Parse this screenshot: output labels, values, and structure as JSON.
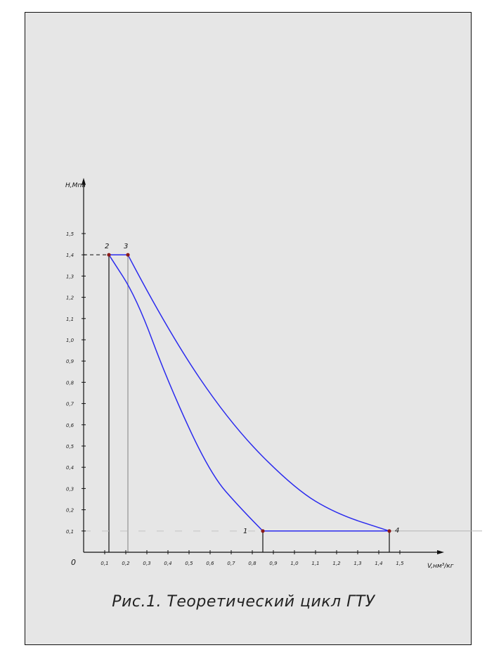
{
  "caption": "Рис.1. Теоретический цикл ГТУ",
  "chart_data": {
    "type": "line",
    "xlabel": "V,нм³/кг",
    "ylabel": "Н,Мпа",
    "origin_label": "0",
    "xlim": [
      0,
      1.6
    ],
    "ylim": [
      0,
      1.6
    ],
    "xticks": [
      "0,1",
      "0,2",
      "0,3",
      "0,4",
      "0,5",
      "0,6",
      "0,7",
      "0,8",
      "0,9",
      "1,0",
      "1,1",
      "1,2",
      "1,3",
      "1,4",
      "1,5"
    ],
    "yticks": [
      "0,1",
      "0,2",
      "0,3",
      "0,4",
      "0,5",
      "0,6",
      "0,7",
      "0,8",
      "0,9",
      "1,0",
      "1,1",
      "1,2",
      "1,3",
      "1,4",
      "1,5"
    ],
    "points": [
      {
        "label": "1",
        "x": 0.85,
        "y": 0.1
      },
      {
        "label": "2",
        "x": 0.12,
        "y": 1.4
      },
      {
        "label": "3",
        "x": 0.21,
        "y": 1.4
      },
      {
        "label": "4",
        "x": 1.45,
        "y": 0.1
      }
    ],
    "series": [
      {
        "values": [
          [
            0.85,
            0.1
          ],
          [
            0.75,
            0.2
          ],
          [
            0.6,
            0.37
          ],
          [
            0.4,
            0.8
          ],
          [
            0.25,
            1.2
          ],
          [
            0.12,
            1.4
          ]
        ]
      },
      {
        "values": [
          [
            0.12,
            1.4
          ],
          [
            0.21,
            1.4
          ]
        ]
      },
      {
        "values": [
          [
            0.21,
            1.4
          ],
          [
            0.4,
            1.04
          ],
          [
            0.7,
            0.6
          ],
          [
            1.0,
            0.3
          ],
          [
            1.2,
            0.18
          ],
          [
            1.45,
            0.1
          ]
        ]
      },
      {
        "values": [
          [
            0.85,
            0.1
          ],
          [
            1.45,
            0.1
          ]
        ]
      }
    ],
    "line_color": "#2a2aee",
    "point_color": "#8b1a1a",
    "grid": false
  }
}
